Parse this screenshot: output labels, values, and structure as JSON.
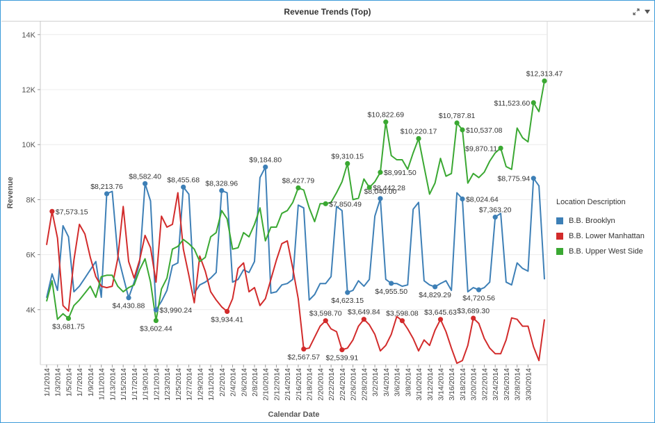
{
  "title": "Revenue Trends (Top)",
  "legend": {
    "title": "Location Description",
    "items": [
      {
        "label": "B.B. Brooklyn",
        "color": "#3d7fb6"
      },
      {
        "label": "B.B. Lower Manhattan",
        "color": "#d22b2b"
      },
      {
        "label": "B.B. Upper West Side",
        "color": "#3aa832"
      }
    ]
  },
  "chart_data": {
    "type": "line",
    "title": "Revenue Trends (Top)",
    "xlabel": "Calendar Date",
    "ylabel": "Revenue",
    "ylim": [
      2000,
      14500
    ],
    "yticks": [
      4000,
      6000,
      8000,
      10000,
      12000,
      14000
    ],
    "ytick_labels": [
      "4K",
      "6K",
      "8K",
      "10K",
      "12K",
      "14K"
    ],
    "x_start": "2014-01-01",
    "x_end": "2014-03-31",
    "xtick_labels": [
      "1/1/2014",
      "1/3/2014",
      "1/5/2014",
      "1/7/2014",
      "1/9/2014",
      "1/11/2014",
      "1/13/2014",
      "1/15/2014",
      "1/17/2014",
      "1/19/2014",
      "1/21/2014",
      "1/23/2014",
      "1/25/2014",
      "1/27/2014",
      "1/29/2014",
      "1/31/2014",
      "2/2/2014",
      "2/4/2014",
      "2/6/2014",
      "2/8/2014",
      "2/10/2014",
      "2/12/2014",
      "2/14/2014",
      "2/16/2014",
      "2/18/2014",
      "2/20/2014",
      "2/22/2014",
      "2/24/2014",
      "2/26/2014",
      "2/28/2014",
      "3/2/2014",
      "3/4/2014",
      "3/6/2014",
      "3/8/2014",
      "3/10/2014",
      "3/12/2014",
      "3/14/2014",
      "3/16/2014",
      "3/18/2014",
      "3/20/2014",
      "3/22/2014",
      "3/24/2014",
      "3/26/2014",
      "3/28/2014",
      "3/30/2014"
    ],
    "grid": true,
    "legend_position": "right",
    "series": [
      {
        "name": "B.B. Brooklyn",
        "color": "#3d7fb6",
        "values": [
          4430,
          5300,
          4700,
          7050,
          6650,
          4650,
          4850,
          5150,
          5450,
          5750,
          4450,
          8213.76,
          8300,
          6000,
          5200,
          4430.88,
          5000,
          5700,
          8582.4,
          7950,
          3990.24,
          4300,
          4700,
          5600,
          5700,
          8455.68,
          8200,
          4600,
          4900,
          5000,
          5150,
          5350,
          8328.96,
          8250,
          5000,
          5100,
          5450,
          5350,
          5750,
          8800,
          9184.8,
          4600,
          4650,
          4900,
          4950,
          5100,
          7800,
          7700,
          4350,
          4550,
          4950,
          4950,
          5200,
          7750,
          7600,
          4623.15,
          4700,
          5050,
          4850,
          5100,
          7400,
          8040,
          5100,
          4955.5,
          4950,
          4850,
          4900,
          7650,
          7900,
          5050,
          4900,
          4829.29,
          4950,
          5050,
          4700,
          8250,
          8024.64,
          4650,
          4800,
          4720.56,
          4800,
          5000,
          7363.2,
          7500,
          5000,
          4900,
          5700,
          5500,
          5400,
          8775.94,
          8500,
          5100
        ]
      },
      {
        "name": "B.B. Lower Manhattan",
        "color": "#d22b2b",
        "values": [
          6350,
          7573.15,
          6600,
          4150,
          3950,
          5800,
          7100,
          6750,
          5900,
          5200,
          4850,
          4800,
          4850,
          5850,
          7750,
          5750,
          5150,
          5800,
          6700,
          6250,
          5000,
          7400,
          7000,
          7100,
          8250,
          6200,
          5250,
          4250,
          5950,
          5400,
          4650,
          4350,
          4100,
          3934.41,
          4400,
          5500,
          5700,
          4650,
          4800,
          4150,
          4400,
          5100,
          5800,
          6400,
          6500,
          5500,
          4400,
          2567.57,
          2600,
          3000,
          3400,
          3598.7,
          3300,
          3200,
          2539.91,
          2600,
          2900,
          3400,
          3649.84,
          3450,
          3100,
          2500,
          2700,
          3100,
          3750,
          3598.08,
          3300,
          2950,
          2500,
          2900,
          2700,
          3250,
          3645.63,
          3200,
          2600,
          2050,
          2150,
          2700,
          3689.3,
          3500,
          2950,
          2600,
          2400,
          2400,
          2900,
          3700,
          3650,
          3400,
          3400,
          2650,
          2150,
          3650
        ]
      },
      {
        "name": "B.B. Upper West Side",
        "color": "#3aa832",
        "values": [
          4300,
          5050,
          3650,
          3850,
          3681.75,
          4150,
          4350,
          4600,
          4850,
          4450,
          5200,
          5250,
          5250,
          4850,
          4650,
          4800,
          4900,
          5450,
          5850,
          5000,
          3602.44,
          4750,
          5150,
          6200,
          6300,
          6550,
          6400,
          6200,
          5750,
          5900,
          6650,
          6800,
          7600,
          7300,
          6200,
          6250,
          6800,
          6650,
          7100,
          7700,
          6500,
          7000,
          7000,
          7500,
          7600,
          7900,
          8427.79,
          8350,
          7700,
          7200,
          7850,
          7850.49,
          7900,
          8250,
          8650,
          9310.15,
          8000,
          8050,
          8750,
          8442.28,
          8650,
          8991.5,
          10822.69,
          9600,
          9450,
          9450,
          9100,
          9700,
          10220.17,
          9200,
          8200,
          8600,
          9500,
          8850,
          8950,
          10787.81,
          10537.08,
          8600,
          8950,
          8800,
          9000,
          9400,
          9700,
          9870.11,
          9200,
          9100,
          10600,
          10250,
          10100,
          11523.6,
          11200,
          12313.47
        ]
      }
    ],
    "annotations": [
      {
        "series": 0,
        "index": 11,
        "label": "$8,213.76",
        "pos": "above"
      },
      {
        "series": 0,
        "index": 15,
        "label": "$4,430.88",
        "pos": "below"
      },
      {
        "series": 0,
        "index": 18,
        "label": "$8,582.40",
        "pos": "above"
      },
      {
        "series": 0,
        "index": 20,
        "label": "$3,990.24",
        "pos": "right"
      },
      {
        "series": 0,
        "index": 25,
        "label": "$8,455.68",
        "pos": "above"
      },
      {
        "series": 0,
        "index": 32,
        "label": "$8,328.96",
        "pos": "above"
      },
      {
        "series": 0,
        "index": 40,
        "label": "$9,184.80",
        "pos": "above"
      },
      {
        "series": 0,
        "index": 55,
        "label": "$4,623.15",
        "pos": "below"
      },
      {
        "series": 0,
        "index": 61,
        "label": "$8,040.00",
        "pos": "above"
      },
      {
        "series": 0,
        "index": 63,
        "label": "$4,955.50",
        "pos": "below"
      },
      {
        "series": 0,
        "index": 71,
        "label": "$4,829.29",
        "pos": "below"
      },
      {
        "series": 0,
        "index": 76,
        "label": "$8,024.64",
        "pos": "right"
      },
      {
        "series": 0,
        "index": 79,
        "label": "$4,720.56",
        "pos": "below"
      },
      {
        "series": 0,
        "index": 82,
        "label": "$7,363.20",
        "pos": "above"
      },
      {
        "series": 0,
        "index": 89,
        "label": "$8,775.94",
        "pos": "left"
      },
      {
        "series": 1,
        "index": 1,
        "label": "$7,573.15",
        "pos": "right"
      },
      {
        "series": 1,
        "index": 33,
        "label": "$3,934.41",
        "pos": "below"
      },
      {
        "series": 1,
        "index": 47,
        "label": "$2,567.57",
        "pos": "below"
      },
      {
        "series": 1,
        "index": 51,
        "label": "$3,598.70",
        "pos": "above"
      },
      {
        "series": 1,
        "index": 54,
        "label": "$2,539.91",
        "pos": "below"
      },
      {
        "series": 1,
        "index": 58,
        "label": "$3,649.84",
        "pos": "above"
      },
      {
        "series": 1,
        "index": 65,
        "label": "$3,598.08",
        "pos": "above"
      },
      {
        "series": 1,
        "index": 72,
        "label": "$3,645.63",
        "pos": "above"
      },
      {
        "series": 1,
        "index": 78,
        "label": "$3,689.30",
        "pos": "above"
      },
      {
        "series": 2,
        "index": 4,
        "label": "$3,681.75",
        "pos": "below"
      },
      {
        "series": 2,
        "index": 20,
        "label": "$3,602.44",
        "pos": "below"
      },
      {
        "series": 2,
        "index": 46,
        "label": "$8,427.79",
        "pos": "above"
      },
      {
        "series": 2,
        "index": 51,
        "label": "$7,850.49",
        "pos": "right"
      },
      {
        "series": 2,
        "index": 55,
        "label": "$9,310.15",
        "pos": "above"
      },
      {
        "series": 2,
        "index": 59,
        "label": "$8,442.28",
        "pos": "right"
      },
      {
        "series": 2,
        "index": 61,
        "label": "$8,991.50",
        "pos": "right"
      },
      {
        "series": 2,
        "index": 62,
        "label": "$10,822.69",
        "pos": "above"
      },
      {
        "series": 2,
        "index": 68,
        "label": "$10,220.17",
        "pos": "above"
      },
      {
        "series": 2,
        "index": 75,
        "label": "$10,787.81",
        "pos": "above"
      },
      {
        "series": 2,
        "index": 76,
        "label": "$10,537.08",
        "pos": "right"
      },
      {
        "series": 2,
        "index": 83,
        "label": "$9,870.11",
        "pos": "left"
      },
      {
        "series": 2,
        "index": 89,
        "label": "$11,523.60",
        "pos": "left"
      },
      {
        "series": 2,
        "index": 91,
        "label": "$12,313.47",
        "pos": "above"
      }
    ]
  }
}
